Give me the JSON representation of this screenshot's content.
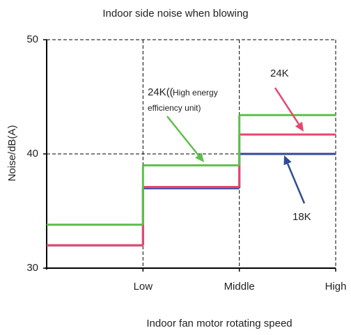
{
  "chart_data": {
    "type": "step",
    "title": "Indoor side noise when blowing",
    "xlabel": "Indoor fan motor rotating speed",
    "ylabel": "Noise/dB(A)",
    "x": [
      0,
      1,
      2
    ],
    "xlim": [
      0,
      3
    ],
    "xticks": [
      {
        "value": 1,
        "label": "Low"
      },
      {
        "value": 2,
        "label": "Middle"
      },
      {
        "value": 3,
        "label": "High"
      }
    ],
    "ylim": [
      30,
      50
    ],
    "yticks": [
      30,
      40,
      50
    ],
    "grid": true,
    "series": [
      {
        "color": "#5cbf4b",
        "values": [
          33.8,
          39.0,
          43.4
        ]
      },
      {
        "name": "18K",
        "color": "#2f4a9b",
        "values": [
          32.0,
          37.0,
          40.0
        ]
      },
      {
        "name": "24K",
        "color": "#e8466c",
        "values": [
          32.0,
          37.1,
          41.7
        ]
      }
    ],
    "annotations": [
      "24K((",
      "High energy",
      "efficiency unit)",
      "24K",
      "18K"
    ]
  }
}
